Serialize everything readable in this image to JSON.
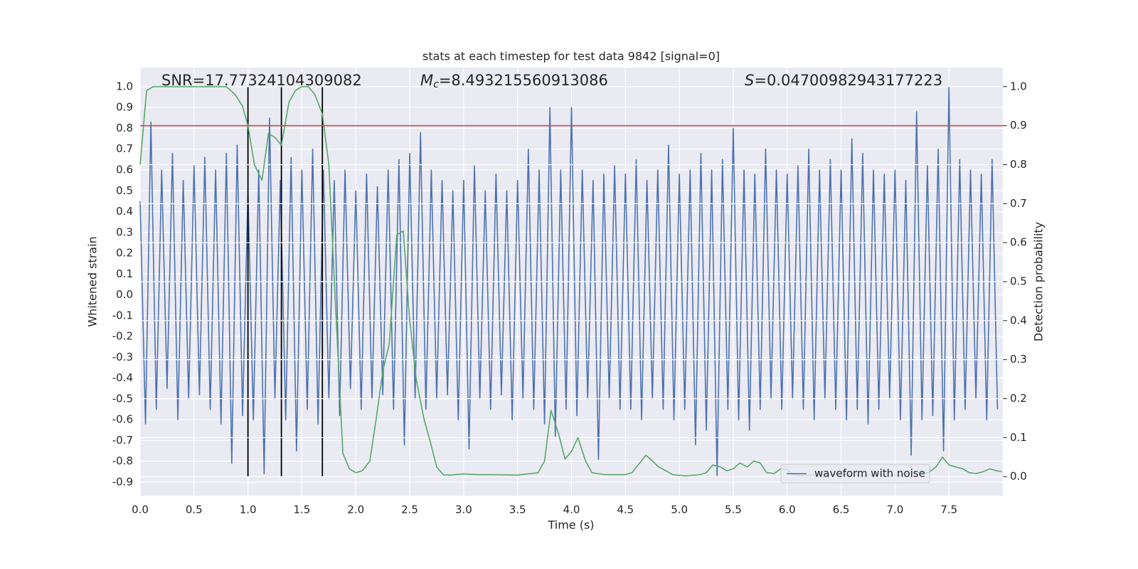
{
  "chart_data": {
    "type": "line",
    "title": "stats at each timestep for test data 9842 [signal=0]",
    "xlabel": "Time (s)",
    "ylabel": "Whitened strain",
    "y2label": "Detection probability",
    "xlim": [
      0,
      8
    ],
    "xticks": [
      {
        "value": 0,
        "label": "0.0"
      },
      0.5,
      {
        "value": 1,
        "label": "1.0"
      },
      1.5,
      {
        "value": 2,
        "label": "2.0"
      },
      2.5,
      {
        "value": 3,
        "label": "3.0"
      },
      3.5,
      {
        "value": 4,
        "label": "4.0"
      },
      4.5,
      {
        "value": 5,
        "label": "5.0"
      },
      5.5,
      {
        "value": 6,
        "label": "6.0"
      },
      6.5,
      {
        "value": 7,
        "label": "7.0"
      },
      7.5
    ],
    "ylim": [
      -0.965,
      1.092
    ],
    "yticks": [
      -0.9,
      -0.8,
      -0.7,
      -0.6,
      -0.5,
      -0.4,
      -0.3,
      -0.2,
      -0.1,
      {
        "value": 0,
        "label": "0.0"
      },
      0.1,
      0.2,
      0.3,
      0.4,
      0.5,
      0.6,
      0.7,
      0.8,
      0.9,
      {
        "value": 1,
        "label": "1.0"
      }
    ],
    "y2lim": [
      -0.049,
      1.049
    ],
    "y2ticks": [
      {
        "value": 0,
        "label": "0.0"
      },
      0.1,
      0.2,
      0.3,
      0.4,
      0.5,
      0.6,
      0.7,
      0.8,
      0.9,
      {
        "value": 1,
        "label": "1.0"
      }
    ],
    "grid": true,
    "legend": "lower right",
    "annotations": [
      {
        "text": "SNR=17.77324104309082"
      },
      {
        "italic": "M",
        "sub": "c",
        "text": "=8.493215560913086"
      },
      {
        "italic": "S",
        "text": "=0.04700982943177223"
      }
    ],
    "series": [
      {
        "name": "waveform with noise",
        "color": "#4c72b0",
        "x": [
          0,
          0.05,
          0.1,
          0.15,
          0.2,
          0.25,
          0.3,
          0.35,
          0.4,
          0.45,
          0.5,
          0.55,
          0.6,
          0.65,
          0.7,
          0.75,
          0.8,
          0.85,
          0.9,
          0.95,
          1,
          1.05,
          1.1,
          1.15,
          1.2,
          1.25,
          1.3,
          1.35,
          1.4,
          1.45,
          1.5,
          1.55,
          1.6,
          1.65,
          1.7,
          1.75,
          1.8,
          1.85,
          1.9,
          1.95,
          2,
          2.05,
          2.1,
          2.15,
          2.2,
          2.25,
          2.3,
          2.35,
          2.4,
          2.45,
          2.5,
          2.55,
          2.6,
          2.65,
          2.7,
          2.75,
          2.8,
          2.85,
          2.9,
          2.95,
          3,
          3.05,
          3.1,
          3.15,
          3.2,
          3.25,
          3.3,
          3.35,
          3.4,
          3.45,
          3.5,
          3.55,
          3.6,
          3.65,
          3.7,
          3.75,
          3.8,
          3.85,
          3.9,
          3.95,
          4,
          4.05,
          4.1,
          4.15,
          4.2,
          4.25,
          4.3,
          4.35,
          4.4,
          4.45,
          4.5,
          4.55,
          4.6,
          4.65,
          4.7,
          4.75,
          4.8,
          4.85,
          4.9,
          4.95,
          5,
          5.05,
          5.1,
          5.15,
          5.2,
          5.25,
          5.3,
          5.35,
          5.4,
          5.45,
          5.5,
          5.55,
          5.6,
          5.65,
          5.7,
          5.75,
          5.8,
          5.85,
          5.9,
          5.95,
          6,
          6.05,
          6.1,
          6.15,
          6.2,
          6.25,
          6.3,
          6.35,
          6.4,
          6.45,
          6.5,
          6.55,
          6.6,
          6.65,
          6.7,
          6.75,
          6.8,
          6.85,
          6.9,
          6.95,
          7,
          7.05,
          7.1,
          7.15,
          7.2,
          7.25,
          7.3,
          7.35,
          7.4,
          7.45,
          7.5,
          7.55,
          7.6,
          7.65,
          7.7,
          7.75,
          7.8,
          7.85,
          7.9,
          7.95
        ],
        "values": [
          0.45,
          -0.62,
          0.83,
          -0.55,
          0.6,
          -0.45,
          0.68,
          -0.6,
          0.55,
          -0.5,
          0.62,
          -0.48,
          0.66,
          -0.55,
          0.6,
          -0.62,
          0.68,
          -0.81,
          0.72,
          -0.58,
          0.5,
          -0.6,
          0.6,
          -0.86,
          0.85,
          -0.5,
          0.55,
          -0.6,
          0.66,
          -0.75,
          0.6,
          -0.55,
          0.7,
          -0.62,
          0.6,
          -0.5,
          0.55,
          -0.58,
          0.6,
          -0.45,
          0.5,
          -0.55,
          0.58,
          -0.5,
          0.52,
          -0.48,
          0.6,
          -0.55,
          0.65,
          -0.72,
          0.68,
          -0.5,
          0.78,
          -0.55,
          0.6,
          -0.5,
          0.55,
          -0.48,
          0.5,
          -0.6,
          0.55,
          -0.74,
          0.62,
          -0.5,
          0.5,
          -0.55,
          0.58,
          -0.48,
          0.5,
          -0.6,
          0.55,
          -0.5,
          0.7,
          -0.55,
          0.6,
          -0.62,
          0.9,
          -0.68,
          0.6,
          -0.55,
          0.9,
          -0.58,
          0.6,
          -0.5,
          0.55,
          -0.79,
          0.58,
          -0.5,
          0.62,
          -0.55,
          0.58,
          -0.55,
          0.65,
          -0.6,
          0.55,
          -0.5,
          0.6,
          -0.55,
          0.72,
          -0.6,
          0.58,
          -0.55,
          0.6,
          -0.72,
          0.68,
          -0.65,
          0.6,
          -0.87,
          0.65,
          -0.55,
          0.8,
          -0.6,
          0.6,
          -0.65,
          0.58,
          -0.55,
          0.7,
          -0.5,
          0.6,
          -0.55,
          0.58,
          -0.5,
          0.62,
          -0.55,
          0.7,
          -0.6,
          0.6,
          -0.5,
          0.65,
          -0.55,
          0.6,
          -0.6,
          0.75,
          -0.55,
          0.68,
          -0.62,
          0.6,
          -0.55,
          0.58,
          -0.5,
          0.6,
          -0.6,
          0.55,
          -0.77,
          0.88,
          -0.6,
          0.62,
          -0.58,
          0.7,
          -0.75,
          1.0,
          -0.6,
          0.65,
          -0.55,
          0.6,
          -0.5,
          0.58,
          -0.6,
          0.65,
          -0.55
        ]
      },
      {
        "color": "#55a868",
        "axis": "y2",
        "x": [
          0,
          0.06,
          0.12,
          0.25,
          0.5,
          0.8,
          0.88,
          0.95,
          1,
          1.06,
          1.13,
          1.19,
          1.25,
          1.31,
          1.38,
          1.44,
          1.5,
          1.56,
          1.62,
          1.69,
          1.75,
          1.81,
          1.88,
          1.94,
          2,
          2.06,
          2.13,
          2.19,
          2.25,
          2.31,
          2.38,
          2.44,
          2.5,
          2.56,
          2.63,
          2.69,
          2.75,
          2.81,
          2.88,
          3,
          3.13,
          3.25,
          3.5,
          3.69,
          3.75,
          3.81,
          3.88,
          3.94,
          4,
          4.06,
          4.13,
          4.19,
          4.31,
          4.5,
          4.56,
          4.69,
          4.81,
          4.94,
          5.06,
          5.19,
          5.25,
          5.31,
          5.38,
          5.44,
          5.5,
          5.56,
          5.63,
          5.69,
          5.75,
          5.81,
          5.88,
          5.94,
          6,
          6.06,
          6.13,
          6.31,
          6.5,
          6.75,
          7,
          7.06,
          7.19,
          7.31,
          7.38,
          7.44,
          7.5,
          7.56,
          7.63,
          7.69,
          7.75,
          7.81,
          7.88,
          7.94,
          7.99
        ],
        "values": [
          0.8,
          0.99,
          1,
          1,
          1,
          1,
          0.98,
          0.95,
          0.9,
          0.8,
          0.76,
          0.88,
          0.87,
          0.85,
          0.96,
          0.99,
          1,
          1,
          0.98,
          0.93,
          0.8,
          0.45,
          0.06,
          0.02,
          0.01,
          0.015,
          0.04,
          0.15,
          0.27,
          0.34,
          0.62,
          0.63,
          0.4,
          0.25,
          0.15,
          0.09,
          0.025,
          0.005,
          0.004,
          0.007,
          0.005,
          0.005,
          0.004,
          0.01,
          0.04,
          0.17,
          0.11,
          0.045,
          0.065,
          0.1,
          0.04,
          0.01,
          0.005,
          0.005,
          0.01,
          0.055,
          0.025,
          0.005,
          0.002,
          0.005,
          0.01,
          0.03,
          0.025,
          0.015,
          0.02,
          0.035,
          0.025,
          0.04,
          0.035,
          0.01,
          0.008,
          0.02,
          0.018,
          0.005,
          0.003,
          0.005,
          0.005,
          0.003,
          0.004,
          0.005,
          0.01,
          0.01,
          0.025,
          0.05,
          0.03,
          0.025,
          0.02,
          0.01,
          0.008,
          0.012,
          0.02,
          0.015,
          0.013
        ]
      }
    ],
    "hlines": [
      {
        "value": 0.9,
        "axis": "y2",
        "color": "#c44e52"
      }
    ],
    "vlines": {
      "x": [
        1,
        1.31,
        1.69
      ],
      "ymin": 0,
      "ymax": 1,
      "axis": "y2",
      "color": "#000000"
    }
  }
}
